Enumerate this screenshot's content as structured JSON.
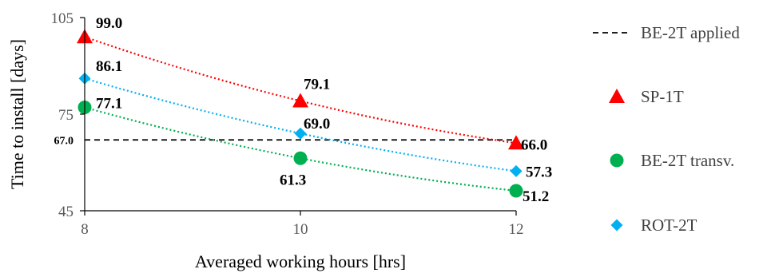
{
  "chart_data": {
    "type": "scatter",
    "xlabel": "Averaged working hours [hrs]",
    "ylabel": "Time to install [days]",
    "x_ticks": [
      8,
      10,
      12
    ],
    "y_ticks": [
      45,
      75,
      105
    ],
    "xlim": [
      8,
      12
    ],
    "ylim": [
      45,
      105
    ],
    "grid": false,
    "legend_position": "right",
    "reference_line": {
      "name": "BE-2T applied",
      "value": 67.0,
      "label": "67.0",
      "color": "#000000"
    },
    "series": [
      {
        "name": "SP-1T",
        "marker": "triangle",
        "color": "#ff0000",
        "x": [
          8,
          10,
          12
        ],
        "values": [
          99.0,
          79.1,
          66.0
        ],
        "labels": [
          "99.0",
          "79.1",
          "66.0"
        ]
      },
      {
        "name": "BE-2T transv.",
        "marker": "circle",
        "color": "#00b050",
        "x": [
          8,
          10,
          12
        ],
        "values": [
          77.1,
          61.3,
          51.2
        ],
        "labels": [
          "77.1",
          "61.3",
          "51.2"
        ]
      },
      {
        "name": "ROT-2T",
        "marker": "diamond",
        "color": "#00b0f0",
        "x": [
          8,
          10,
          12
        ],
        "values": [
          86.1,
          69.0,
          57.3
        ],
        "labels": [
          "86.1",
          "69.0",
          "57.3"
        ]
      }
    ]
  }
}
